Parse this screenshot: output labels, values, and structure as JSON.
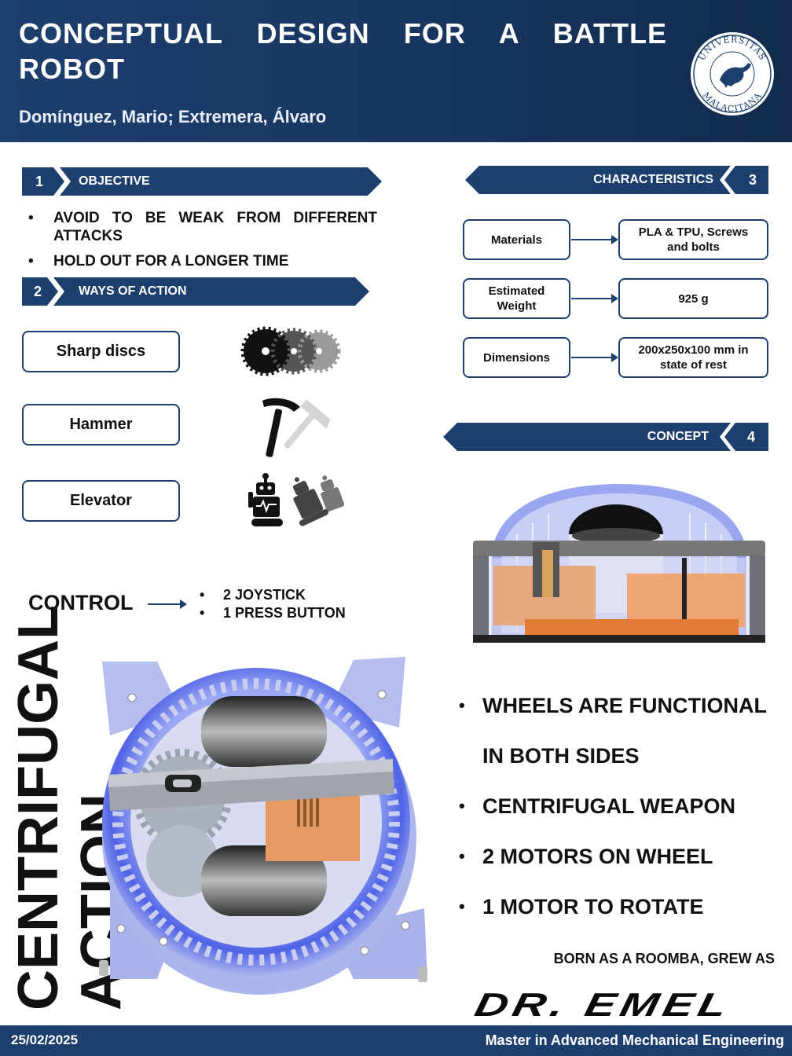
{
  "header": {
    "title": "CONCEPTUAL DESIGN FOR A BATTLE ROBOT",
    "authors": "Domínguez, Mario; Extremera, Álvaro",
    "seal_text_top": "UNIVERSITAS",
    "seal_text_bottom": "MALACITANA"
  },
  "sections": {
    "objective": {
      "number": "1",
      "title": "OBJECTIVE"
    },
    "ways": {
      "number": "2",
      "title": "WAYS OF ACTION"
    },
    "characteristics": {
      "number": "3",
      "title": "CHARACTERISTICS"
    },
    "concept": {
      "number": "4",
      "title": "CONCEPT"
    }
  },
  "objectives": [
    "AVOID TO BE WEAK FROM DIFFERENT ATTACKS",
    "HOLD OUT FOR A LONGER TIME"
  ],
  "ways_of_action": [
    {
      "label": "Sharp discs",
      "icon": "saw-discs-icon"
    },
    {
      "label": "Hammer",
      "icon": "hammer-icon"
    },
    {
      "label": "Elevator",
      "icon": "robots-icon"
    }
  ],
  "characteristics": [
    {
      "name": "Materials",
      "value": "PLA & TPU, Screws and bolts"
    },
    {
      "name": "Estimated Weight",
      "value": "925 g"
    },
    {
      "name": "Dimensions",
      "value": "200x250x100 mm in state of rest"
    }
  ],
  "control": {
    "label": "CONTROL",
    "items": [
      "2 JOYSTICK",
      "1 PRESS BUTTON"
    ]
  },
  "features": {
    "wheels_1": "WHEELS ARE FUNCTIONAL",
    "wheels_2": "IN BOTH SIDES",
    "weapon": "CENTRIFUGAL WEAPON",
    "motors_wheel": "2 MOTORS ON WHEEL",
    "motor_rotate": "1 MOTOR TO ROTATE"
  },
  "vertical_text": {
    "line1": "CENTRIFUGAL",
    "line2": "ACTION"
  },
  "tagline": "BORN AS A ROOMBA, GREW AS",
  "robot_name": "DR. EMEL",
  "footer": {
    "date": "25/02/2025",
    "program": "Master in Advanced Mechanical Engineering"
  },
  "colors": {
    "navy": "#1d3f6e",
    "ring_blue": "#5b6ee8",
    "body_lavender": "#aeb7ea",
    "copper": "#e4975c"
  }
}
